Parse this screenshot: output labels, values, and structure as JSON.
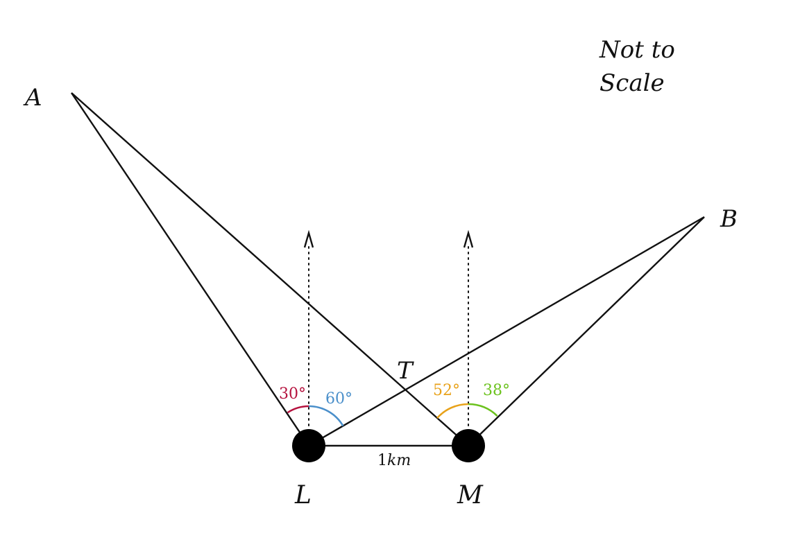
{
  "note": {
    "line1": "Not to",
    "line2": "Scale"
  },
  "points": {
    "A": "A",
    "B": "B",
    "T": "T",
    "L": "L",
    "M": "M"
  },
  "distance": {
    "value": "1",
    "unit": "km"
  },
  "angles": {
    "L_left": {
      "text": "30°",
      "color": "#b5123e"
    },
    "L_right": {
      "text": "60°",
      "color": "#4a8fca"
    },
    "M_left": {
      "text": "52°",
      "color": "#e8a21a"
    },
    "M_right": {
      "text": "38°",
      "color": "#6cc21e"
    }
  },
  "colors": {
    "line": "#111111",
    "point": "#000000"
  }
}
